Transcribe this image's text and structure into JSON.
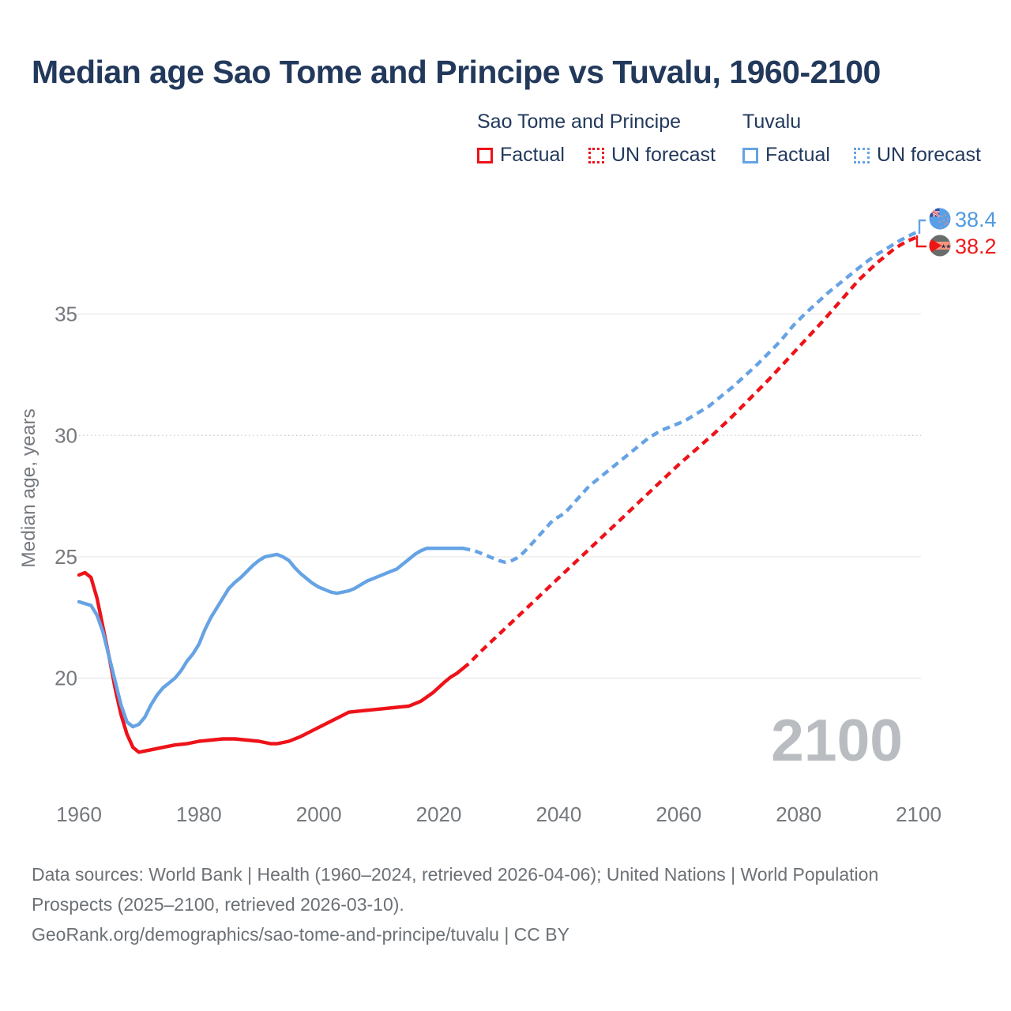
{
  "page": {
    "title": "Median age Sao Tome and Principe vs Tuvalu, 1960-2100",
    "watermark": "2100"
  },
  "legend": {
    "groups": [
      {
        "label": "Sao Tome and Principe",
        "color": "#ee1219",
        "items": [
          {
            "label": "Factual",
            "style": "solid"
          },
          {
            "label": "UN forecast",
            "style": "dotted"
          }
        ]
      },
      {
        "label": "Tuvalu",
        "color": "#66a3e4",
        "items": [
          {
            "label": "Factual",
            "style": "solid"
          },
          {
            "label": "UN forecast",
            "style": "dotted"
          }
        ]
      }
    ]
  },
  "footer": {
    "sources": "Data sources: World Bank | Health (1960–2024, retrieved 2026-04-06); United Nations | World Population Prospects (2025–2100, retrieved 2026-03-10).",
    "link": "GeoRank.org/demographics/sao-tome-and-principe/tuvalu | CC BY"
  },
  "chart_data": {
    "type": "line",
    "title": "Median age Sao Tome and Principe vs Tuvalu, 1960-2100",
    "xlabel": "",
    "ylabel": "Median age, years",
    "xlim": [
      1959,
      2103
    ],
    "ylim": [
      16.3,
      39.2
    ],
    "x_ticks": [
      1960,
      1980,
      2000,
      2020,
      2040,
      2060,
      2080,
      2100
    ],
    "y_ticks": [
      20,
      25,
      30,
      35
    ],
    "grid": "horizontal",
    "grid_color": "#ededef",
    "dotted_gridline_value": 30,
    "legend_position": "top-right",
    "watermark": "2100",
    "axis_text_color": "#75797e",
    "series": [
      {
        "name": "Sao Tome and Principe — Factual",
        "color": "#ee1219",
        "dash": "solid",
        "points": [
          [
            1960,
            24.25
          ],
          [
            1961,
            24.35
          ],
          [
            1962,
            24.15
          ],
          [
            1963,
            23.3
          ],
          [
            1964,
            22.1
          ],
          [
            1965,
            20.9
          ],
          [
            1966,
            19.6
          ],
          [
            1967,
            18.5
          ],
          [
            1968,
            17.7
          ],
          [
            1969,
            17.15
          ],
          [
            1970,
            16.95
          ],
          [
            1971,
            17.0
          ],
          [
            1972,
            17.05
          ],
          [
            1974,
            17.15
          ],
          [
            1976,
            17.25
          ],
          [
            1978,
            17.3
          ],
          [
            1980,
            17.4
          ],
          [
            1982,
            17.45
          ],
          [
            1984,
            17.5
          ],
          [
            1986,
            17.5
          ],
          [
            1988,
            17.45
          ],
          [
            1990,
            17.4
          ],
          [
            1992,
            17.3
          ],
          [
            1993,
            17.3
          ],
          [
            1995,
            17.4
          ],
          [
            1997,
            17.6
          ],
          [
            1999,
            17.85
          ],
          [
            2001,
            18.1
          ],
          [
            2003,
            18.35
          ],
          [
            2005,
            18.6
          ],
          [
            2007,
            18.65
          ],
          [
            2009,
            18.7
          ],
          [
            2011,
            18.75
          ],
          [
            2013,
            18.8
          ],
          [
            2015,
            18.85
          ],
          [
            2017,
            19.05
          ],
          [
            2019,
            19.4
          ],
          [
            2021,
            19.85
          ],
          [
            2022,
            20.05
          ],
          [
            2023,
            20.2
          ],
          [
            2024,
            20.4
          ]
        ]
      },
      {
        "name": "Sao Tome and Principe — UN forecast",
        "color": "#ee1219",
        "dash": "dashed",
        "points": [
          [
            2024,
            20.4
          ],
          [
            2025,
            20.6
          ],
          [
            2027,
            21.1
          ],
          [
            2030,
            21.8
          ],
          [
            2033,
            22.5
          ],
          [
            2036,
            23.2
          ],
          [
            2039,
            23.9
          ],
          [
            2042,
            24.6
          ],
          [
            2045,
            25.3
          ],
          [
            2048,
            26.0
          ],
          [
            2051,
            26.7
          ],
          [
            2054,
            27.4
          ],
          [
            2057,
            28.1
          ],
          [
            2060,
            28.8
          ],
          [
            2063,
            29.45
          ],
          [
            2066,
            30.1
          ],
          [
            2069,
            30.8
          ],
          [
            2072,
            31.55
          ],
          [
            2075,
            32.3
          ],
          [
            2078,
            33.1
          ],
          [
            2081,
            33.9
          ],
          [
            2084,
            34.7
          ],
          [
            2087,
            35.55
          ],
          [
            2090,
            36.4
          ],
          [
            2093,
            37.1
          ],
          [
            2096,
            37.7
          ],
          [
            2098,
            38.0
          ],
          [
            2100,
            38.2
          ]
        ]
      },
      {
        "name": "Tuvalu — Factual",
        "color": "#66a3e4",
        "dash": "solid",
        "points": [
          [
            1960,
            23.15
          ],
          [
            1962,
            23.0
          ],
          [
            1963,
            22.6
          ],
          [
            1964,
            21.9
          ],
          [
            1965,
            20.9
          ],
          [
            1966,
            19.9
          ],
          [
            1967,
            18.9
          ],
          [
            1968,
            18.2
          ],
          [
            1969,
            18.0
          ],
          [
            1970,
            18.1
          ],
          [
            1971,
            18.4
          ],
          [
            1972,
            18.9
          ],
          [
            1973,
            19.3
          ],
          [
            1974,
            19.6
          ],
          [
            1975,
            19.8
          ],
          [
            1976,
            20.0
          ],
          [
            1977,
            20.3
          ],
          [
            1978,
            20.7
          ],
          [
            1979,
            21.0
          ],
          [
            1980,
            21.4
          ],
          [
            1981,
            22.0
          ],
          [
            1982,
            22.5
          ],
          [
            1983,
            22.9
          ],
          [
            1984,
            23.3
          ],
          [
            1985,
            23.7
          ],
          [
            1986,
            23.95
          ],
          [
            1987,
            24.15
          ],
          [
            1988,
            24.4
          ],
          [
            1989,
            24.65
          ],
          [
            1990,
            24.85
          ],
          [
            1991,
            25.0
          ],
          [
            1992,
            25.05
          ],
          [
            1993,
            25.1
          ],
          [
            1994,
            25.0
          ],
          [
            1995,
            24.85
          ],
          [
            1996,
            24.55
          ],
          [
            1997,
            24.3
          ],
          [
            1998,
            24.1
          ],
          [
            1999,
            23.9
          ],
          [
            2000,
            23.75
          ],
          [
            2001,
            23.65
          ],
          [
            2002,
            23.55
          ],
          [
            2003,
            23.5
          ],
          [
            2004,
            23.55
          ],
          [
            2005,
            23.6
          ],
          [
            2006,
            23.7
          ],
          [
            2007,
            23.85
          ],
          [
            2008,
            24.0
          ],
          [
            2009,
            24.1
          ],
          [
            2010,
            24.2
          ],
          [
            2011,
            24.3
          ],
          [
            2012,
            24.4
          ],
          [
            2013,
            24.5
          ],
          [
            2014,
            24.7
          ],
          [
            2015,
            24.9
          ],
          [
            2016,
            25.1
          ],
          [
            2017,
            25.25
          ],
          [
            2018,
            25.35
          ],
          [
            2021,
            25.35
          ],
          [
            2024,
            25.35
          ]
        ]
      },
      {
        "name": "Tuvalu — UN forecast",
        "color": "#66a3e4",
        "dash": "dashed",
        "points": [
          [
            2024,
            25.35
          ],
          [
            2026,
            25.25
          ],
          [
            2028,
            25.05
          ],
          [
            2030,
            24.85
          ],
          [
            2031,
            24.78
          ],
          [
            2032,
            24.82
          ],
          [
            2033,
            24.95
          ],
          [
            2034,
            25.15
          ],
          [
            2035,
            25.4
          ],
          [
            2037,
            25.95
          ],
          [
            2039,
            26.5
          ],
          [
            2041,
            26.8
          ],
          [
            2043,
            27.35
          ],
          [
            2045,
            27.9
          ],
          [
            2047,
            28.3
          ],
          [
            2049,
            28.7
          ],
          [
            2051,
            29.1
          ],
          [
            2053,
            29.5
          ],
          [
            2055,
            29.9
          ],
          [
            2057,
            30.2
          ],
          [
            2059,
            30.4
          ],
          [
            2061,
            30.6
          ],
          [
            2063,
            30.9
          ],
          [
            2065,
            31.2
          ],
          [
            2067,
            31.6
          ],
          [
            2069,
            32.0
          ],
          [
            2071,
            32.45
          ],
          [
            2073,
            32.9
          ],
          [
            2075,
            33.4
          ],
          [
            2077,
            33.9
          ],
          [
            2079,
            34.5
          ],
          [
            2081,
            35.0
          ],
          [
            2083,
            35.45
          ],
          [
            2085,
            35.9
          ],
          [
            2087,
            36.3
          ],
          [
            2089,
            36.7
          ],
          [
            2091,
            37.1
          ],
          [
            2093,
            37.45
          ],
          [
            2095,
            37.75
          ],
          [
            2097,
            38.05
          ],
          [
            2099,
            38.3
          ],
          [
            2100,
            38.4
          ]
        ]
      }
    ],
    "end_labels": [
      {
        "series": "Tuvalu",
        "label": "38.4",
        "color": "#4d9ae0",
        "icon": "tuvalu-flag-icon"
      },
      {
        "series": "Sao Tome and Principe",
        "label": "38.2",
        "color": "#ee1a1a",
        "icon": "sao-tome-flag-icon"
      }
    ]
  }
}
